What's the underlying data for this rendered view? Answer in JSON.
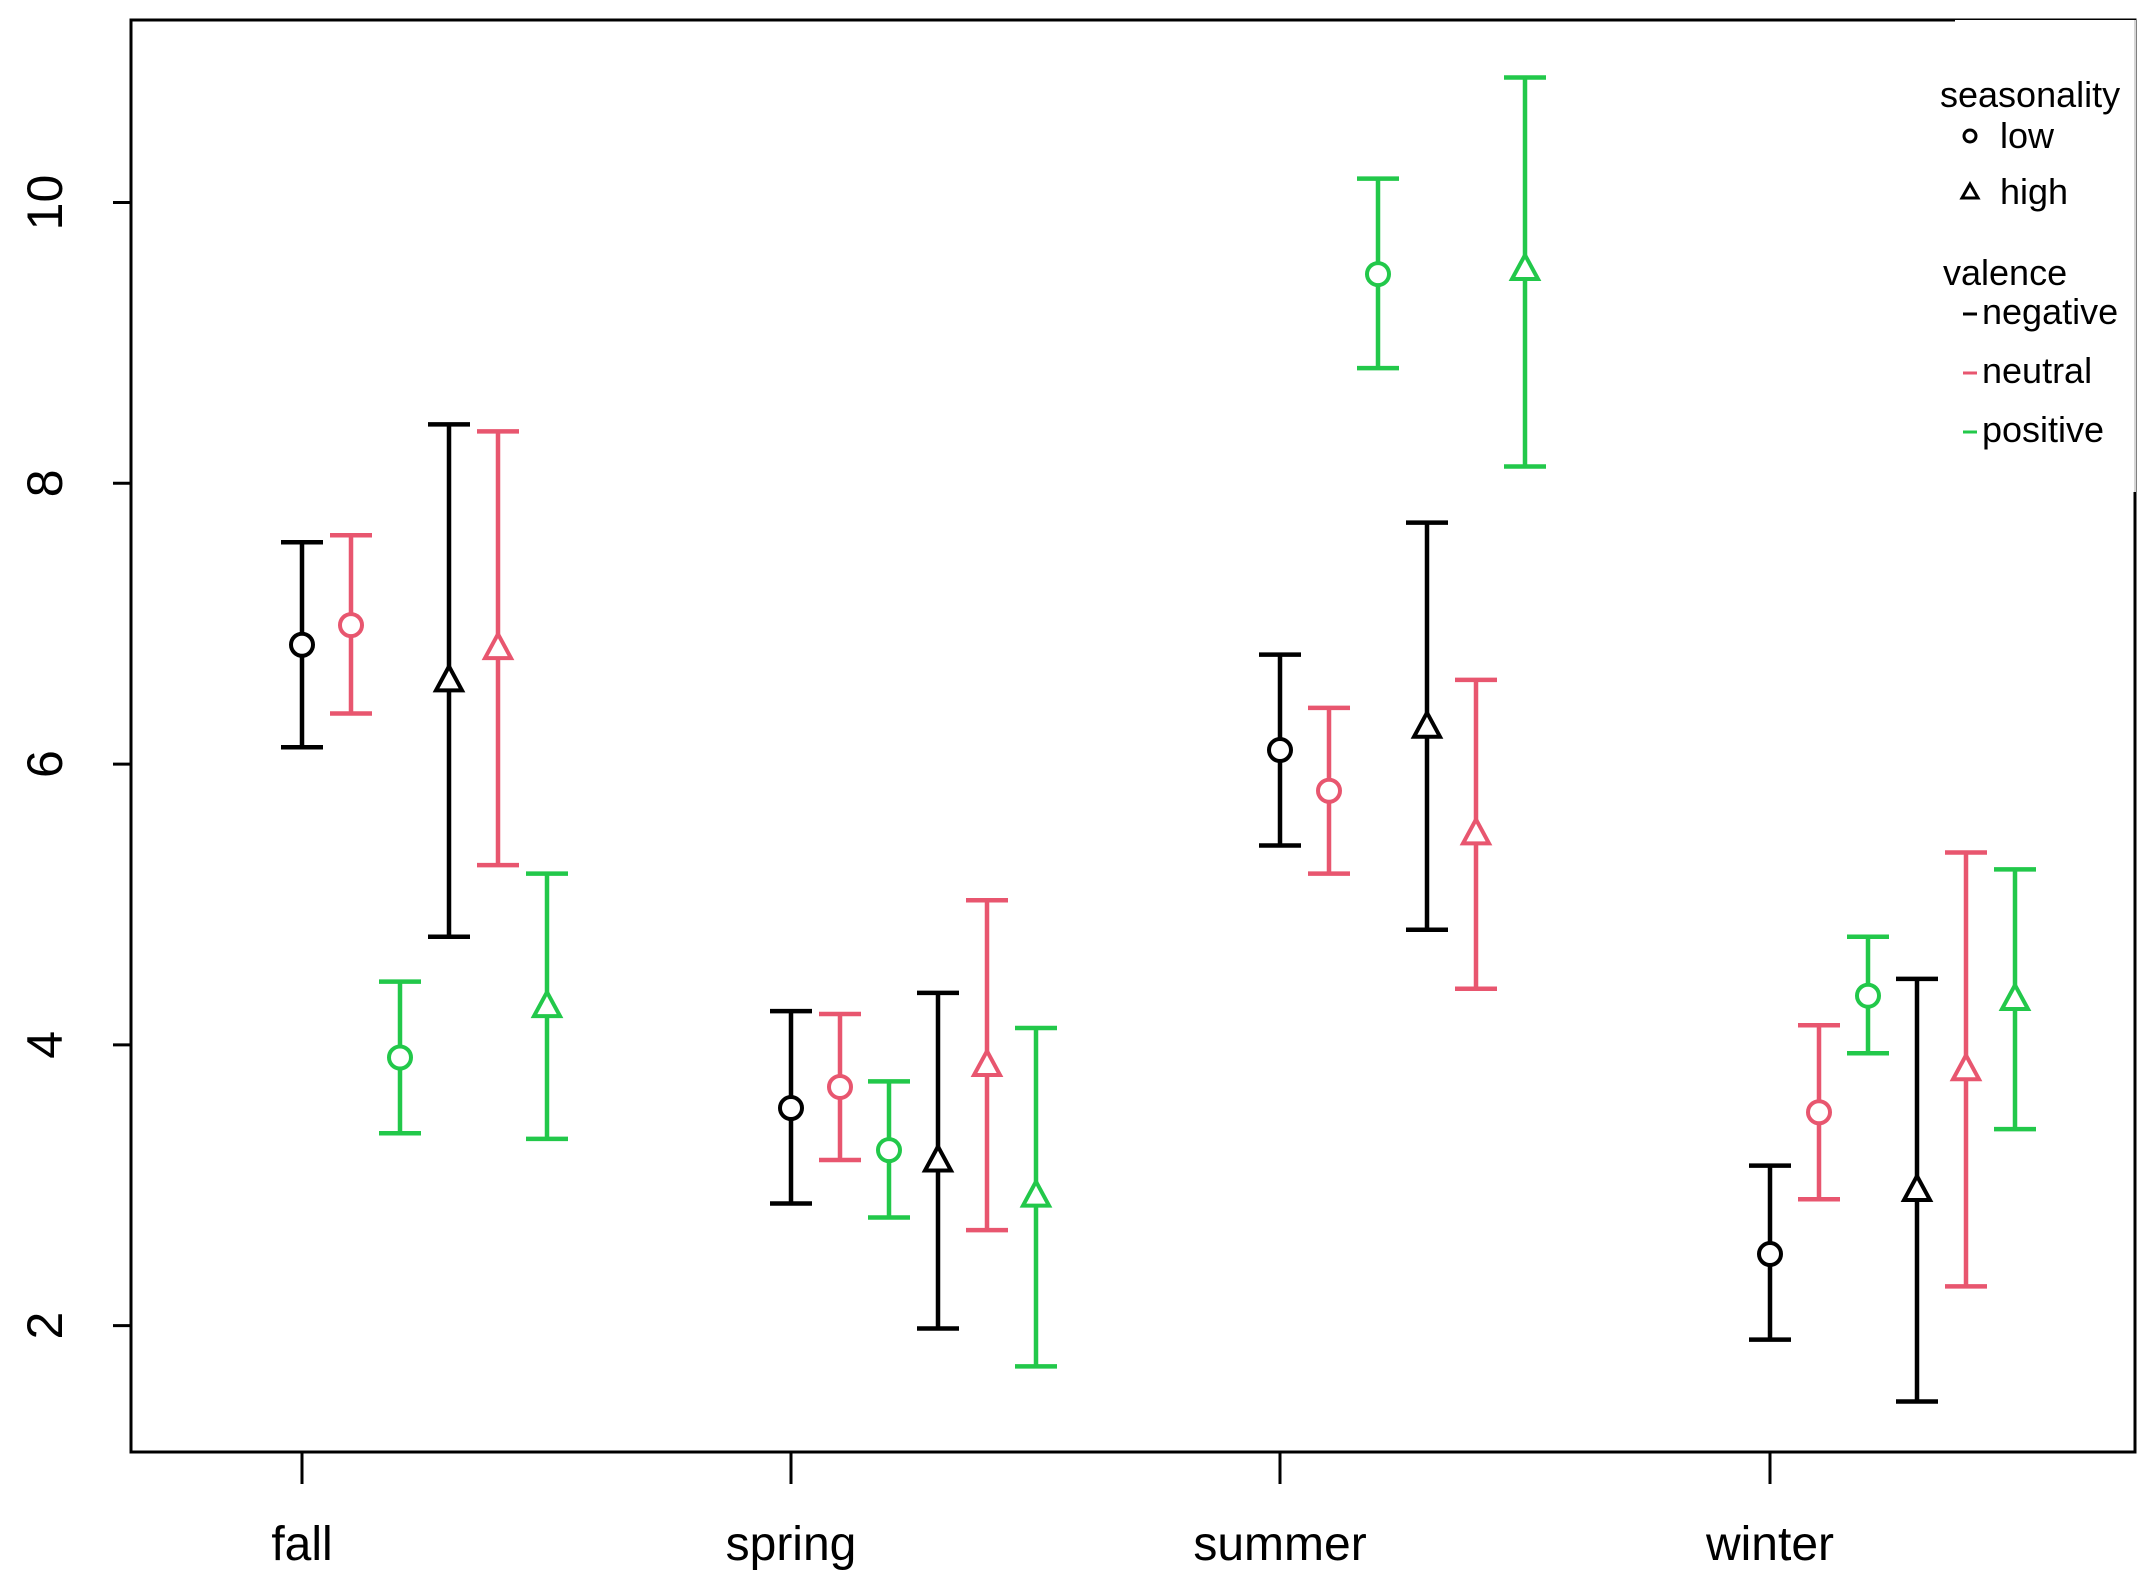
{
  "chart_data": {
    "type": "errorbar",
    "title": "",
    "xlabel": "",
    "ylabel": "",
    "ylim": [
      1.1,
      11.3
    ],
    "y_ticks": [
      2,
      4,
      6,
      8,
      10
    ],
    "y_tick_labels": [
      "2",
      "4",
      "6",
      "8",
      "10"
    ],
    "categories": [
      "fall",
      "spring",
      "summer",
      "winter"
    ],
    "legend": {
      "position": "top-right",
      "seasonality_title": "seasonality",
      "seasonality_items": [
        {
          "shape": "circle",
          "label": "low"
        },
        {
          "shape": "triangle",
          "label": "high"
        }
      ],
      "valence_title": "valence",
      "valence_items": [
        {
          "key": "negative",
          "label": "negative",
          "color": "#000000"
        },
        {
          "key": "neutral",
          "label": "neutral",
          "color": "#E8566F"
        },
        {
          "key": "positive",
          "label": "positive",
          "color": "#22C84A"
        }
      ]
    },
    "series": [
      {
        "name": "negative-low",
        "valence": "negative",
        "seasonality": "low",
        "color": "#000000",
        "shape": "circle",
        "points": [
          {
            "category": "fall",
            "mean": 6.85,
            "lower": 6.12,
            "upper": 7.58
          },
          {
            "category": "spring",
            "mean": 3.55,
            "lower": 2.87,
            "upper": 4.24
          },
          {
            "category": "summer",
            "mean": 6.1,
            "lower": 5.42,
            "upper": 6.78
          },
          {
            "category": "winter",
            "mean": 2.51,
            "lower": 1.9,
            "upper": 3.14
          }
        ]
      },
      {
        "name": "neutral-low",
        "valence": "neutral",
        "seasonality": "low",
        "color": "#E8566F",
        "shape": "circle",
        "points": [
          {
            "category": "fall",
            "mean": 6.99,
            "lower": 6.36,
            "upper": 7.63
          },
          {
            "category": "spring",
            "mean": 3.7,
            "lower": 3.18,
            "upper": 4.22
          },
          {
            "category": "summer",
            "mean": 5.81,
            "lower": 5.22,
            "upper": 6.4
          },
          {
            "category": "winter",
            "mean": 3.52,
            "lower": 2.9,
            "upper": 4.14
          }
        ]
      },
      {
        "name": "positive-low",
        "valence": "positive",
        "seasonality": "low",
        "color": "#22C84A",
        "shape": "circle",
        "points": [
          {
            "category": "fall",
            "mean": 3.91,
            "lower": 3.37,
            "upper": 4.45
          },
          {
            "category": "spring",
            "mean": 3.25,
            "lower": 2.77,
            "upper": 3.74
          },
          {
            "category": "summer",
            "mean": 9.49,
            "lower": 8.82,
            "upper": 10.17
          },
          {
            "category": "winter",
            "mean": 4.35,
            "lower": 3.94,
            "upper": 4.77
          }
        ]
      },
      {
        "name": "negative-high",
        "valence": "negative",
        "seasonality": "high",
        "color": "#000000",
        "shape": "triangle",
        "points": [
          {
            "category": "fall",
            "mean": 6.59,
            "lower": 4.77,
            "upper": 8.42
          },
          {
            "category": "spring",
            "mean": 3.17,
            "lower": 1.98,
            "upper": 4.37
          },
          {
            "category": "summer",
            "mean": 6.26,
            "lower": 4.82,
            "upper": 7.72
          },
          {
            "category": "winter",
            "mean": 2.96,
            "lower": 1.46,
            "upper": 4.47
          }
        ]
      },
      {
        "name": "neutral-high",
        "valence": "neutral",
        "seasonality": "high",
        "color": "#E8566F",
        "shape": "triangle",
        "points": [
          {
            "category": "fall",
            "mean": 6.82,
            "lower": 5.28,
            "upper": 8.37
          },
          {
            "category": "spring",
            "mean": 3.85,
            "lower": 2.68,
            "upper": 5.03
          },
          {
            "category": "summer",
            "mean": 5.5,
            "lower": 4.4,
            "upper": 6.6
          },
          {
            "category": "winter",
            "mean": 3.82,
            "lower": 2.28,
            "upper": 5.37
          }
        ]
      },
      {
        "name": "positive-high",
        "valence": "positive",
        "seasonality": "high",
        "color": "#22C84A",
        "shape": "triangle",
        "points": [
          {
            "category": "fall",
            "mean": 4.27,
            "lower": 3.33,
            "upper": 5.22
          },
          {
            "category": "spring",
            "mean": 2.92,
            "lower": 1.71,
            "upper": 4.12
          },
          {
            "category": "summer",
            "mean": 9.52,
            "lower": 8.12,
            "upper": 10.89
          },
          {
            "category": "winter",
            "mean": 4.32,
            "lower": 3.4,
            "upper": 5.25
          }
        ]
      }
    ]
  }
}
